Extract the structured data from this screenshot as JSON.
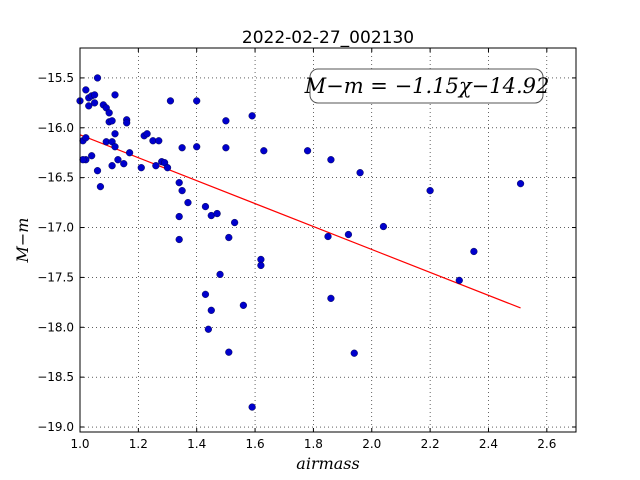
{
  "chart_data": {
    "type": "scatter",
    "title": "2022-02-27_002130",
    "xlabel": "airmass",
    "ylabel": "M−m",
    "xlim": [
      1.0,
      2.7
    ],
    "ylim": [
      -19.05,
      -15.2
    ],
    "x_ticks": [
      1.0,
      1.2,
      1.4,
      1.6,
      1.8,
      2.0,
      2.2,
      2.4,
      2.6
    ],
    "x_tick_labels": [
      "1.0",
      "1.2",
      "1.4",
      "1.6",
      "1.8",
      "2.0",
      "2.2",
      "2.4",
      "2.6"
    ],
    "y_ticks": [
      -15.5,
      -16.0,
      -16.5,
      -17.0,
      -17.5,
      -18.0,
      -18.5,
      -19.0
    ],
    "y_tick_labels": [
      "−15.5",
      "−16.0",
      "−16.5",
      "−17.0",
      "−17.5",
      "−18.0",
      "−18.5",
      "−19.0"
    ],
    "grid": true,
    "annotation": "M−m = −1.15χ−14.92",
    "fit": {
      "slope": -1.15,
      "intercept": -14.92,
      "x_range": [
        1.0,
        2.51
      ],
      "color": "#ff0000"
    },
    "point_color": "#0000cc",
    "points": [
      [
        1.0,
        -15.73
      ],
      [
        1.01,
        -16.13
      ],
      [
        1.02,
        -16.1
      ],
      [
        1.02,
        -16.32
      ],
      [
        1.01,
        -16.32
      ],
      [
        1.02,
        -15.62
      ],
      [
        1.03,
        -15.7
      ],
      [
        1.03,
        -15.78
      ],
      [
        1.04,
        -15.68
      ],
      [
        1.05,
        -15.75
      ],
      [
        1.05,
        -15.67
      ],
      [
        1.04,
        -16.28
      ],
      [
        1.06,
        -15.5
      ],
      [
        1.06,
        -16.43
      ],
      [
        1.07,
        -16.59
      ],
      [
        1.08,
        -15.77
      ],
      [
        1.09,
        -15.8
      ],
      [
        1.09,
        -16.14
      ],
      [
        1.1,
        -15.85
      ],
      [
        1.1,
        -15.94
      ],
      [
        1.11,
        -15.93
      ],
      [
        1.11,
        -16.14
      ],
      [
        1.11,
        -16.38
      ],
      [
        1.12,
        -15.67
      ],
      [
        1.12,
        -16.19
      ],
      [
        1.12,
        -16.06
      ],
      [
        1.13,
        -16.32
      ],
      [
        1.15,
        -16.36
      ],
      [
        1.16,
        -15.92
      ],
      [
        1.16,
        -15.95
      ],
      [
        1.17,
        -16.25
      ],
      [
        1.21,
        -16.4
      ],
      [
        1.22,
        -16.08
      ],
      [
        1.23,
        -16.06
      ],
      [
        1.25,
        -16.13
      ],
      [
        1.26,
        -16.38
      ],
      [
        1.27,
        -16.13
      ],
      [
        1.28,
        -16.34
      ],
      [
        1.29,
        -16.35
      ],
      [
        1.3,
        -16.4
      ],
      [
        1.31,
        -15.73
      ],
      [
        1.34,
        -16.55
      ],
      [
        1.34,
        -16.89
      ],
      [
        1.34,
        -17.12
      ],
      [
        1.35,
        -16.63
      ],
      [
        1.35,
        -16.2
      ],
      [
        1.37,
        -16.75
      ],
      [
        1.4,
        -15.73
      ],
      [
        1.4,
        -16.19
      ],
      [
        1.43,
        -16.79
      ],
      [
        1.43,
        -17.67
      ],
      [
        1.44,
        -18.02
      ],
      [
        1.45,
        -16.88
      ],
      [
        1.45,
        -17.83
      ],
      [
        1.47,
        -16.86
      ],
      [
        1.48,
        -17.47
      ],
      [
        1.5,
        -15.93
      ],
      [
        1.5,
        -16.2
      ],
      [
        1.51,
        -17.1
      ],
      [
        1.51,
        -18.25
      ],
      [
        1.53,
        -16.95
      ],
      [
        1.56,
        -17.78
      ],
      [
        1.59,
        -15.88
      ],
      [
        1.59,
        -18.8
      ],
      [
        1.62,
        -17.32
      ],
      [
        1.62,
        -17.38
      ],
      [
        1.63,
        -16.23
      ],
      [
        1.78,
        -16.23
      ],
      [
        1.85,
        -17.09
      ],
      [
        1.86,
        -17.71
      ],
      [
        1.86,
        -16.32
      ],
      [
        1.92,
        -17.07
      ],
      [
        1.94,
        -18.26
      ],
      [
        1.96,
        -16.45
      ],
      [
        2.04,
        -16.99
      ],
      [
        2.2,
        -16.63
      ],
      [
        2.3,
        -17.53
      ],
      [
        2.35,
        -17.24
      ],
      [
        2.51,
        -16.56
      ]
    ]
  }
}
